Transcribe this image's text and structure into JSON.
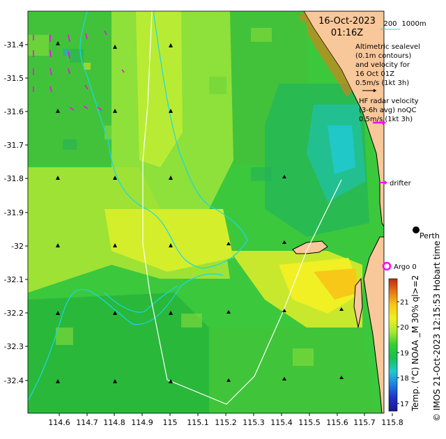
{
  "header": {
    "date": "16-Oct-2023",
    "time": "01:16Z",
    "depth_contour_1": "200",
    "depth_contour_2": "1000m"
  },
  "legend": {
    "altimetry_lines": [
      "Altimetric sealevel",
      "(0.1m contours)",
      "and velocity for",
      "16 Oct 01Z",
      "0.5m/s (1kt 3h)"
    ],
    "hf_radar_lines": [
      "HF radar velocity",
      "(3-6h avg) noQC",
      "0.5m/s (1kt 3h)"
    ],
    "drifter_label": "drifter",
    "argo_label": "Argo 0",
    "city_label": "Perth"
  },
  "colorbar": {
    "label": "Temp. (°C) NOAA _M 30% ql>=2",
    "ticks": [
      "17",
      "18",
      "19",
      "20",
      "21"
    ],
    "colors": [
      "#1a1a8c",
      "#2030c8",
      "#1a80e0",
      "#20c8d0",
      "#18c050",
      "#30d030",
      "#a8e830",
      "#f0f020",
      "#f8c818",
      "#e87818",
      "#c02810"
    ]
  },
  "axes": {
    "x_ticks": [
      "114.6",
      "114.7",
      "114.8",
      "114.9",
      "115",
      "115.1",
      "115.2",
      "115.3",
      "115.4",
      "115.5",
      "115.6",
      "115.7",
      "115.8"
    ],
    "y_ticks": [
      "-31.4",
      "-31.5",
      "-31.6",
      "-31.7",
      "-31.8",
      "-31.9",
      "-32",
      "-32.1",
      "-32.2",
      "-32.3",
      "-32.4"
    ]
  },
  "side_caption": "© IMOS 21-Oct-2023 12:15:53 Hobart time",
  "colors": {
    "land": "#f8c79a",
    "bathymetry": "#18d8e8",
    "hf_radar_arrow": "#ff00ff",
    "argo_marker": "#ff00ff"
  }
}
